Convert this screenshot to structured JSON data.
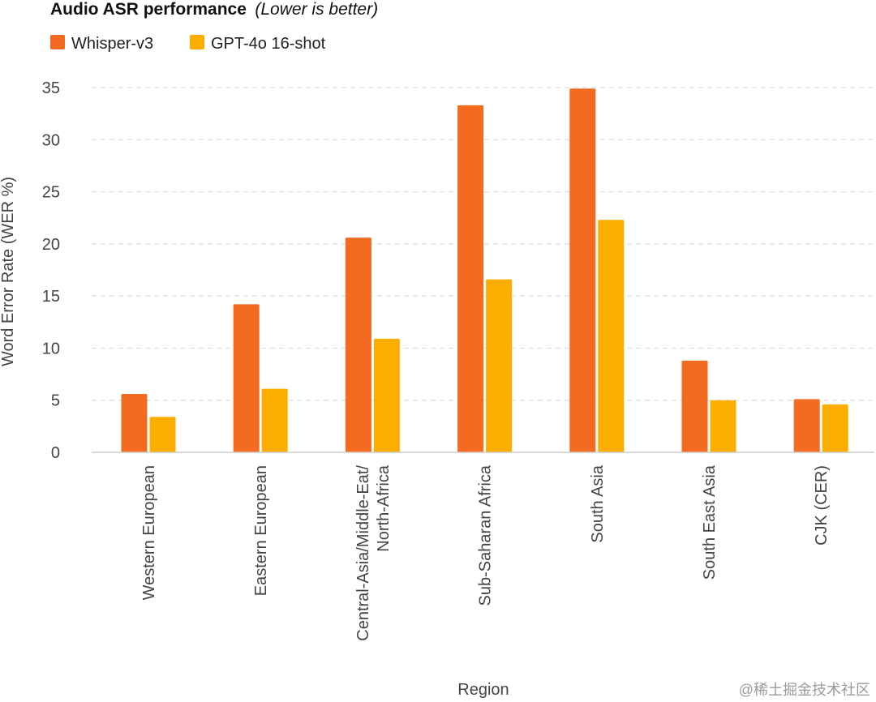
{
  "chart_data": {
    "type": "bar",
    "title": "Audio ASR performance",
    "subtitle": "(Lower is better)",
    "xlabel": "Region",
    "ylabel": "Word Error Rate (WER %)",
    "ylim": [
      0,
      35
    ],
    "yticks": [
      0,
      5,
      10,
      15,
      20,
      25,
      30,
      35
    ],
    "grid": true,
    "legend_position": "top-left",
    "categories": [
      [
        "Western European"
      ],
      [
        "Eastern European"
      ],
      [
        "Central-Asia/Middle-Eat/",
        "North-Africa"
      ],
      [
        "Sub-Saharan Africa"
      ],
      [
        "South Asia"
      ],
      [
        "South East Asia"
      ],
      [
        "CJK (CER)"
      ]
    ],
    "series": [
      {
        "name": "Whisper-v3",
        "color": "#F26B21",
        "values": [
          5.6,
          14.2,
          20.6,
          33.3,
          34.9,
          8.8,
          5.1
        ]
      },
      {
        "name": "GPT-4o 16-shot",
        "color": "#FBAE00",
        "values": [
          3.4,
          6.1,
          10.9,
          16.6,
          22.3,
          5.0,
          4.6
        ]
      }
    ]
  },
  "watermark": "@稀土掘金技术社区"
}
